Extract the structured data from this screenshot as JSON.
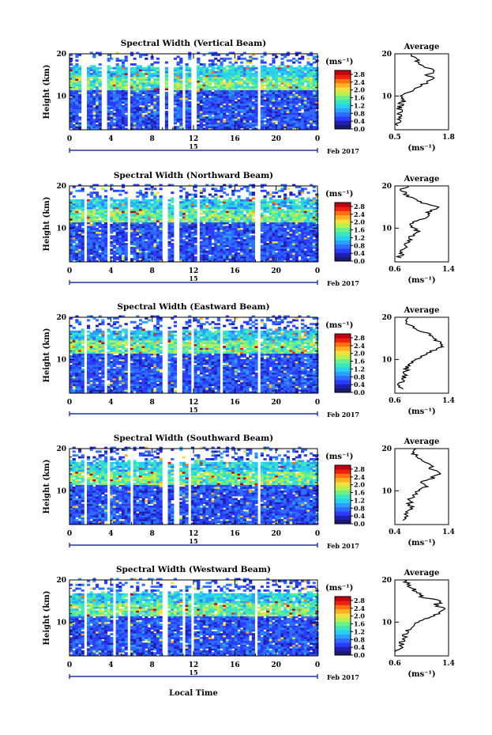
{
  "figure": {
    "time_axis_label": "Local Time",
    "date_label": "Feb 2017",
    "date_day": "15",
    "colorbar_unit": "(ms⁻¹)",
    "average_title": "Average",
    "average_unit": "(ms⁻¹)",
    "height_label": "Height (km)"
  },
  "chart_data": [
    {
      "type": "heatmap",
      "title": "Spectral Width (Vertical Beam)",
      "ylabel": "Height (km)",
      "x_ticks": [
        "0",
        "4",
        "8",
        "12",
        "16",
        "20",
        "0"
      ],
      "y_ticks": [
        "10",
        "20"
      ],
      "xlim": [
        0,
        24
      ],
      "ylim": [
        2,
        20
      ],
      "colorbar": {
        "label": "(ms⁻¹)",
        "ticks": [
          "0.0",
          "0.4",
          "0.8",
          "1.2",
          "1.6",
          "2.0",
          "2.4",
          "2.8"
        ],
        "range": [
          0,
          3.0
        ]
      },
      "gaps_hours": [
        [
          1.2,
          1.6
        ],
        [
          3.2,
          3.6
        ],
        [
          5.6,
          6.0
        ],
        [
          8.6,
          9.2
        ],
        [
          9.6,
          10.0
        ],
        [
          10.8,
          11.3
        ],
        [
          11.7,
          12.2
        ],
        [
          18.1,
          18.6
        ]
      ],
      "average": {
        "xlim": [
          0.5,
          1.8
        ],
        "x_ticks": [
          "0.5",
          "1.8"
        ],
        "y_ticks": [
          "10",
          "20"
        ],
        "height_km": [
          3,
          4,
          5,
          6,
          7,
          8,
          9,
          10,
          11,
          12,
          13,
          14,
          15,
          16,
          17,
          18,
          19,
          20
        ],
        "value": [
          0.55,
          0.6,
          0.58,
          0.62,
          0.6,
          0.65,
          0.7,
          0.68,
          0.85,
          1.0,
          1.25,
          1.4,
          1.3,
          1.5,
          1.2,
          1.1,
          0.95,
          0.9
        ]
      }
    },
    {
      "type": "heatmap",
      "title": "Spectral Width (Northward Beam)",
      "ylabel": "Height (km)",
      "x_ticks": [
        "0",
        "4",
        "8",
        "12",
        "16",
        "20",
        "0"
      ],
      "y_ticks": [
        "10",
        "20"
      ],
      "xlim": [
        0,
        24
      ],
      "ylim": [
        2,
        20
      ],
      "colorbar": {
        "label": "(ms⁻¹)",
        "ticks": [
          "0.0",
          "0.4",
          "0.8",
          "1.2",
          "1.6",
          "2.0",
          "2.4",
          "2.8"
        ],
        "range": [
          0,
          3.0
        ]
      },
      "gaps_hours": [
        [
          1.3,
          1.6
        ],
        [
          3.6,
          3.9
        ],
        [
          5.6,
          5.9
        ],
        [
          9.0,
          9.4
        ],
        [
          10.2,
          10.6
        ],
        [
          12.2,
          12.5
        ],
        [
          18.0,
          18.4
        ]
      ],
      "average": {
        "xlim": [
          0.6,
          1.4
        ],
        "x_ticks": [
          "0.6",
          "1.4"
        ],
        "y_ticks": [
          "10",
          "20"
        ],
        "height_km": [
          3,
          4,
          5,
          6,
          7,
          8,
          9,
          10,
          11,
          12,
          13,
          14,
          15,
          16,
          17,
          18,
          19,
          20
        ],
        "value": [
          0.65,
          0.7,
          0.72,
          0.75,
          0.8,
          0.85,
          0.95,
          0.9,
          0.8,
          1.0,
          1.15,
          1.1,
          1.25,
          1.0,
          0.85,
          0.75,
          0.7,
          0.8
        ]
      }
    },
    {
      "type": "heatmap",
      "title": "Spectral Width (Eastward Beam)",
      "ylabel": "Height (km)",
      "x_ticks": [
        "0",
        "4",
        "8",
        "12",
        "16",
        "20",
        "0"
      ],
      "y_ticks": [
        "10",
        "20"
      ],
      "xlim": [
        0,
        24
      ],
      "ylim": [
        2,
        20
      ],
      "colorbar": {
        "label": "(ms⁻¹)",
        "ticks": [
          "0.0",
          "0.4",
          "0.8",
          "1.2",
          "1.6",
          "2.0",
          "2.4",
          "2.8"
        ],
        "range": [
          0,
          3.0
        ]
      },
      "gaps_hours": [
        [
          1.3,
          1.6
        ],
        [
          3.4,
          3.7
        ],
        [
          5.6,
          5.9
        ],
        [
          9.0,
          9.5
        ],
        [
          10.4,
          10.8
        ],
        [
          11.8,
          12.1
        ],
        [
          14.6,
          14.9
        ],
        [
          18.2,
          18.5
        ]
      ],
      "average": {
        "xlim": [
          0.6,
          1.4
        ],
        "x_ticks": [
          "0.6",
          "1.4"
        ],
        "y_ticks": [
          "10",
          "20"
        ],
        "height_km": [
          3,
          4,
          5,
          6,
          7,
          8,
          9,
          10,
          11,
          12,
          13,
          14,
          15,
          16,
          17,
          18,
          19,
          20
        ],
        "value": [
          0.7,
          0.68,
          0.72,
          0.74,
          0.75,
          0.78,
          0.85,
          0.9,
          1.0,
          1.15,
          1.3,
          1.25,
          1.2,
          1.1,
          0.95,
          0.85,
          0.75,
          0.8
        ]
      }
    },
    {
      "type": "heatmap",
      "title": "Spectral Width (Southward Beam)",
      "ylabel": "Height (km)",
      "x_ticks": [
        "0",
        "4",
        "8",
        "12",
        "16",
        "20",
        "0"
      ],
      "y_ticks": [
        "10",
        "20"
      ],
      "xlim": [
        0,
        24
      ],
      "ylim": [
        2,
        20
      ],
      "colorbar": {
        "label": "(ms⁻¹)",
        "ticks": [
          "0.0",
          "0.4",
          "0.8",
          "1.2",
          "1.6",
          "2.0",
          "2.4",
          "2.8"
        ],
        "range": [
          0,
          3.0
        ]
      },
      "gaps_hours": [
        [
          1.3,
          1.6
        ],
        [
          3.6,
          3.9
        ],
        [
          5.8,
          6.1
        ],
        [
          9.0,
          9.4
        ],
        [
          10.1,
          10.5
        ],
        [
          11.5,
          11.8
        ],
        [
          18.2,
          18.5
        ]
      ],
      "average": {
        "xlim": [
          0.4,
          1.4
        ],
        "x_ticks": [
          "0.4",
          "1.4"
        ],
        "y_ticks": [
          "10",
          "20"
        ],
        "height_km": [
          3,
          4,
          5,
          6,
          7,
          8,
          9,
          10,
          11,
          12,
          13,
          14,
          15,
          16,
          17,
          18,
          19,
          20
        ],
        "value": [
          0.6,
          0.62,
          0.65,
          0.7,
          0.68,
          0.7,
          0.75,
          0.8,
          1.0,
          0.9,
          1.1,
          1.2,
          1.1,
          1.05,
          0.9,
          0.8,
          0.75,
          0.8
        ]
      }
    },
    {
      "type": "heatmap",
      "title": "Spectral Width (Westward Beam)",
      "ylabel": "Height (km)",
      "x_ticks": [
        "0",
        "4",
        "8",
        "12",
        "16",
        "20",
        "0"
      ],
      "y_ticks": [
        "10",
        "20"
      ],
      "xlim": [
        0,
        24
      ],
      "ylim": [
        2,
        20
      ],
      "colorbar": {
        "label": "(ms⁻¹)",
        "ticks": [
          "0.0",
          "0.4",
          "0.8",
          "1.2",
          "1.6",
          "2.0",
          "2.4",
          "2.8"
        ],
        "range": [
          0,
          3.0
        ]
      },
      "gaps_hours": [
        [
          1.3,
          1.6
        ],
        [
          4.2,
          4.5
        ],
        [
          5.7,
          6.0
        ],
        [
          9.0,
          9.5
        ],
        [
          10.8,
          11.2
        ],
        [
          11.8,
          12.1
        ],
        [
          17.8,
          18.2
        ]
      ],
      "average": {
        "xlim": [
          0.6,
          1.4
        ],
        "x_ticks": [
          "0.6",
          "1.4"
        ],
        "y_ticks": [
          "10",
          "20"
        ],
        "height_km": [
          3,
          4,
          5,
          6,
          7,
          8,
          9,
          10,
          11,
          12,
          13,
          14,
          15,
          16,
          17,
          18,
          19,
          20
        ],
        "value": [
          0.65,
          0.68,
          0.7,
          0.72,
          0.75,
          0.8,
          0.85,
          0.95,
          1.1,
          1.25,
          1.35,
          1.2,
          1.3,
          1.0,
          0.95,
          0.85,
          0.8,
          0.75
        ]
      }
    }
  ]
}
